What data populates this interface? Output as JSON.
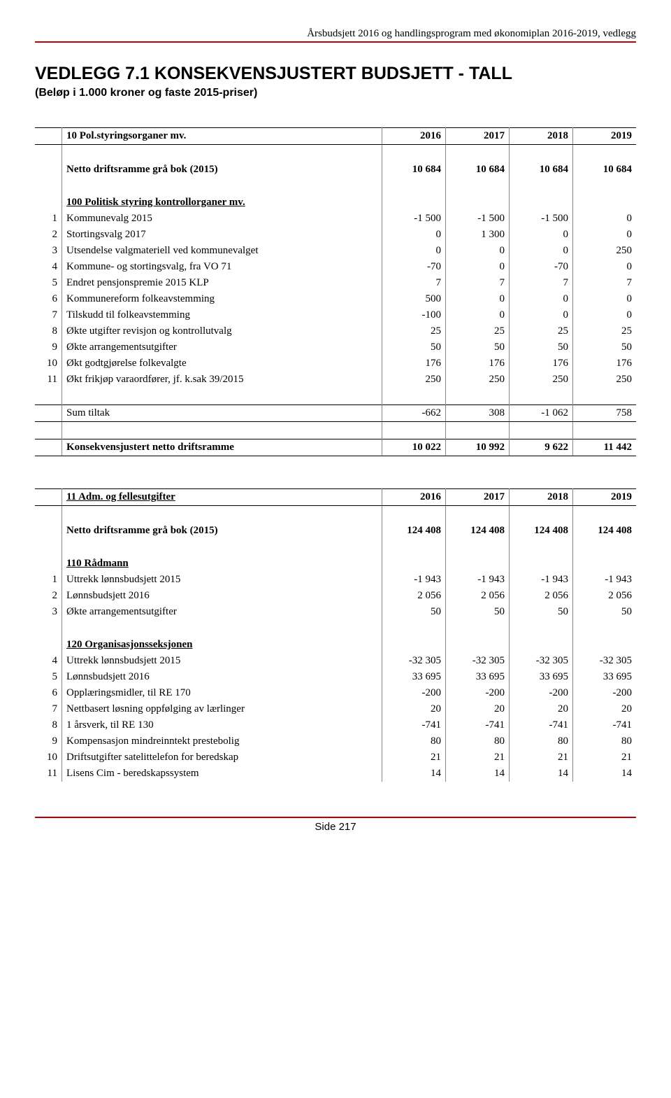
{
  "doc_header": "Årsbudsjett 2016 og handlingsprogram med økonomiplan 2016-2019, vedlegg",
  "title": "VEDLEGG 7.1 KONSEKVENSJUSTERT BUDSJETT - TALL",
  "subtitle": "(Beløp i 1.000 kroner og faste 2015-priser)",
  "footer": "Side 217",
  "colors": {
    "accent": "#c00000",
    "text": "#000000",
    "border": "#888888",
    "bg": "#ffffff"
  },
  "t1": {
    "header": {
      "label": "10 Pol.styringsorganer mv.",
      "y": [
        "2016",
        "2017",
        "2018",
        "2019"
      ]
    },
    "netto": {
      "label": "Netto driftsramme grå bok (2015)",
      "v": [
        "10 684",
        "10 684",
        "10 684",
        "10 684"
      ]
    },
    "section1": "100 Politisk styring kontrollorganer mv.",
    "rows": [
      {
        "n": "1",
        "label": "Kommunevalg 2015",
        "v": [
          "-1 500",
          "-1 500",
          "-1 500",
          "0"
        ]
      },
      {
        "n": "2",
        "label": "Stortingsvalg 2017",
        "v": [
          "0",
          "1 300",
          "0",
          "0"
        ]
      },
      {
        "n": "3",
        "label": "Utsendelse valgmateriell ved kommunevalget",
        "v": [
          "0",
          "0",
          "0",
          "250"
        ]
      },
      {
        "n": "4",
        "label": "Kommune- og stortingsvalg, fra VO 71",
        "v": [
          "-70",
          "0",
          "-70",
          "0"
        ]
      },
      {
        "n": "5",
        "label": "Endret pensjonspremie 2015 KLP",
        "v": [
          "7",
          "7",
          "7",
          "7"
        ]
      },
      {
        "n": "6",
        "label": "Kommunereform folkeavstemming",
        "v": [
          "500",
          "0",
          "0",
          "0"
        ]
      },
      {
        "n": "7",
        "label": "Tilskudd til folkeavstemming",
        "v": [
          "-100",
          "0",
          "0",
          "0"
        ]
      },
      {
        "n": "8",
        "label": "Økte utgifter revisjon og kontrollutvalg",
        "v": [
          "25",
          "25",
          "25",
          "25"
        ]
      },
      {
        "n": "9",
        "label": "Økte arrangementsutgifter",
        "v": [
          "50",
          "50",
          "50",
          "50"
        ]
      },
      {
        "n": "10",
        "label": "Økt godtgjørelse folkevalgte",
        "v": [
          "176",
          "176",
          "176",
          "176"
        ]
      },
      {
        "n": "11",
        "label": "Økt frikjøp varaordfører, jf. k.sak 39/2015",
        "v": [
          "250",
          "250",
          "250",
          "250"
        ]
      }
    ],
    "sum": {
      "label": "Sum tiltak",
      "v": [
        "-662",
        "308",
        "-1 062",
        "758"
      ]
    },
    "kons": {
      "label": "Konsekvensjustert netto driftsramme",
      "v": [
        "10 022",
        "10 992",
        "9 622",
        "11 442"
      ]
    }
  },
  "t2": {
    "header": {
      "label": "11 Adm. og fellesutgifter",
      "y": [
        "2016",
        "2017",
        "2018",
        "2019"
      ]
    },
    "netto": {
      "label": "Netto driftsramme grå bok (2015)",
      "v": [
        "124 408",
        "124 408",
        "124 408",
        "124 408"
      ]
    },
    "section1": "110 Rådmann",
    "rows1": [
      {
        "n": "1",
        "label": "Uttrekk lønnsbudsjett 2015",
        "v": [
          "-1 943",
          "-1 943",
          "-1 943",
          "-1 943"
        ]
      },
      {
        "n": "2",
        "label": "Lønnsbudsjett 2016",
        "v": [
          "2 056",
          "2 056",
          "2 056",
          "2 056"
        ]
      },
      {
        "n": "3",
        "label": "Økte arrangementsutgifter",
        "v": [
          "50",
          "50",
          "50",
          "50"
        ]
      }
    ],
    "section2": "120 Organisasjonsseksjonen",
    "rows2": [
      {
        "n": "4",
        "label": "Uttrekk lønnsbudsjett 2015",
        "v": [
          "-32 305",
          "-32 305",
          "-32 305",
          "-32 305"
        ]
      },
      {
        "n": "5",
        "label": "Lønnsbudsjett 2016",
        "v": [
          "33 695",
          "33 695",
          "33 695",
          "33 695"
        ]
      },
      {
        "n": "6",
        "label": "Opplæringsmidler, til RE 170",
        "v": [
          "-200",
          "-200",
          "-200",
          "-200"
        ]
      },
      {
        "n": "7",
        "label": "Nettbasert løsning oppfølging av lærlinger",
        "v": [
          "20",
          "20",
          "20",
          "20"
        ]
      },
      {
        "n": "8",
        "label": "1 årsverk, til RE 130",
        "v": [
          "-741",
          "-741",
          "-741",
          "-741"
        ]
      },
      {
        "n": "9",
        "label": "Kompensasjon mindreinntekt prestebolig",
        "v": [
          "80",
          "80",
          "80",
          "80"
        ]
      },
      {
        "n": "10",
        "label": "Driftsutgifter satelittelefon for beredskap",
        "v": [
          "21",
          "21",
          "21",
          "21"
        ]
      },
      {
        "n": "11",
        "label": "Lisens Cim - beredskapssystem",
        "v": [
          "14",
          "14",
          "14",
          "14"
        ]
      }
    ]
  }
}
